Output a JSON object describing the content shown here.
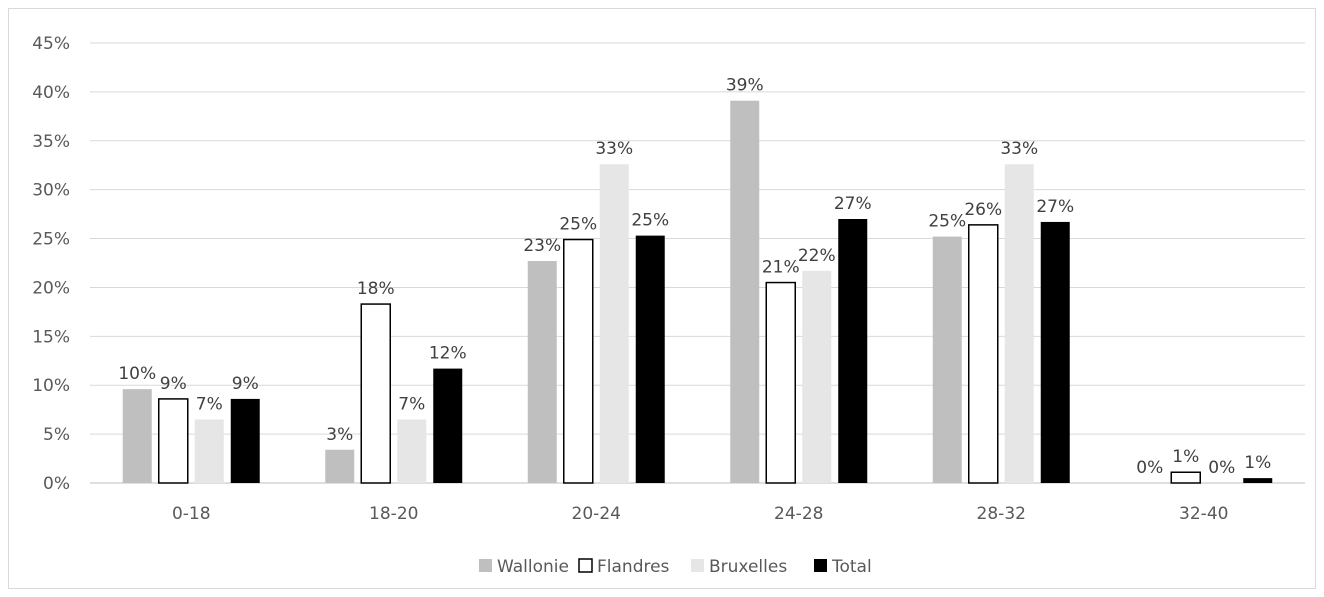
{
  "chart_data": {
    "type": "bar",
    "title": "",
    "xlabel": "",
    "ylabel": "",
    "ylim": [
      0,
      45
    ],
    "yticks": [
      "0%",
      "5%",
      "10%",
      "15%",
      "20%",
      "25%",
      "30%",
      "35%",
      "40%",
      "45%"
    ],
    "categories": [
      "0-18",
      "18-20",
      "20-24",
      "24-28",
      "28-32",
      "32-40"
    ],
    "series": [
      {
        "name": "Wallonie",
        "values": [
          9.6,
          3.4,
          22.7,
          39.1,
          25.2,
          0
        ],
        "labels": [
          "10%",
          "3%",
          "23%",
          "39%",
          "25%",
          "0%"
        ],
        "color": "#bfbfbf"
      },
      {
        "name": "Flandres",
        "values": [
          8.6,
          18.3,
          24.9,
          20.5,
          26.4,
          1.1
        ],
        "labels": [
          "9%",
          "18%",
          "25%",
          "21%",
          "26%",
          "1%"
        ],
        "color": "#ffffff"
      },
      {
        "name": "Bruxelles",
        "values": [
          6.5,
          6.5,
          32.6,
          21.7,
          32.6,
          0
        ],
        "labels": [
          "7%",
          "7%",
          "33%",
          "22%",
          "33%",
          "0%"
        ],
        "color": "#e6e6e6"
      },
      {
        "name": "Total",
        "values": [
          8.6,
          11.7,
          25.3,
          27.0,
          26.7,
          0.5
        ],
        "labels": [
          "9%",
          "12%",
          "25%",
          "27%",
          "27%",
          "1%"
        ],
        "color": "#000000"
      }
    ],
    "grid": true,
    "legend_position": "bottom"
  }
}
